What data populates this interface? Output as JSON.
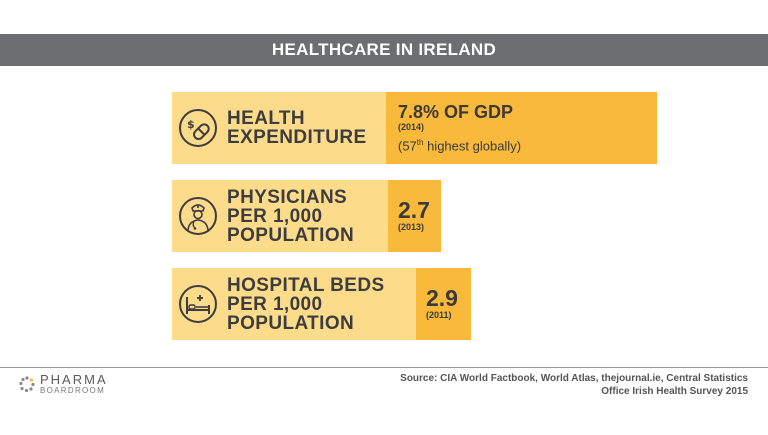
{
  "title": "HEALTHCARE IN IRELAND",
  "stats": [
    {
      "icon": "money-pill-icon",
      "label_lines": [
        "HEALTH",
        "EXPENDITURE"
      ],
      "value": "7.8% OF GDP",
      "year": "(2014)",
      "note_prefix": "(57",
      "note_sup": "th",
      "note_suffix": " highest globally)"
    },
    {
      "icon": "doctor-icon",
      "label_lines": [
        "PHYSICIANS",
        "PER 1,000",
        "POPULATION"
      ],
      "value": "2.7",
      "year": "(2013)"
    },
    {
      "icon": "hospital-bed-icon",
      "label_lines": [
        "HOSPITAL BEDS",
        "PER 1,000",
        "POPULATION"
      ],
      "value": "2.9",
      "year": "(2011)"
    }
  ],
  "footer": {
    "logo_main": "PHARMA",
    "logo_sub": "BOARDROOM",
    "source_line1": "Source: CIA World Factbook, World Atlas, thejournal.ie, Central Statistics",
    "source_line2": "Office Irish Health Survey 2015"
  },
  "colors": {
    "title_bar": "#6d6e71",
    "label_box": "#fcdb8b",
    "value_box": "#f9b93a",
    "text_dark": "#3d3d3d"
  }
}
